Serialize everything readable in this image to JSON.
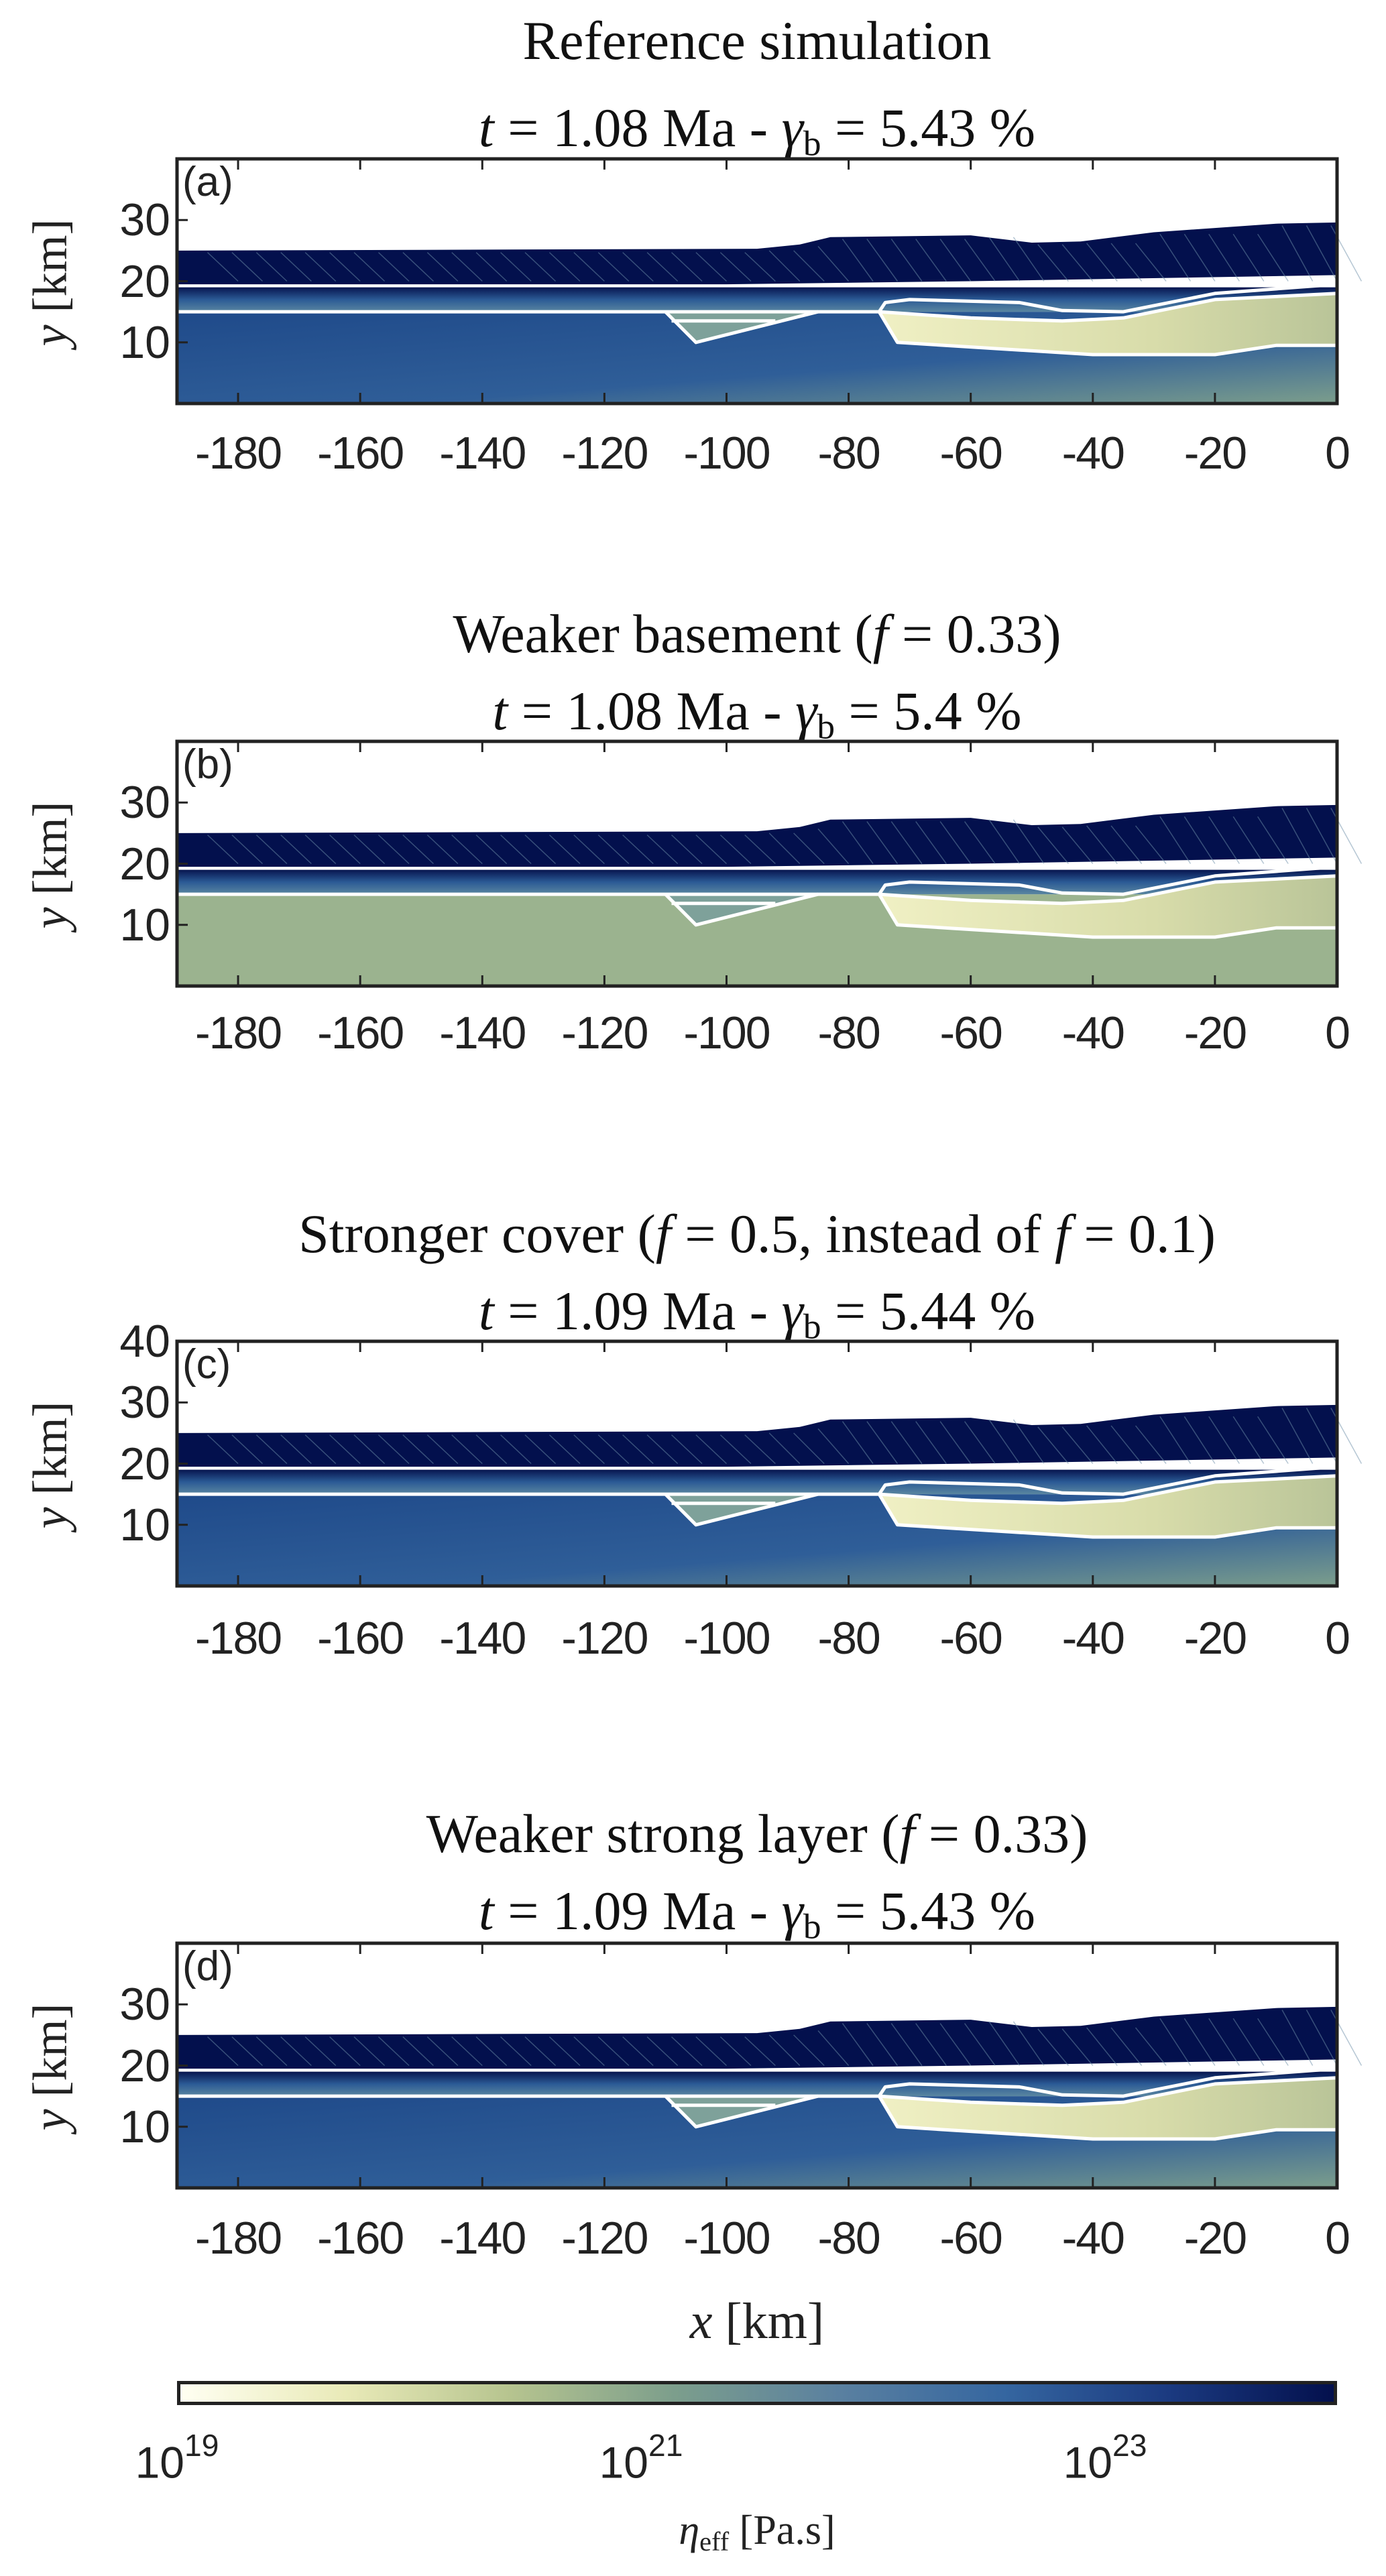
{
  "chart_data": {
    "type": "heatmap",
    "colormap": [
      "#fffff2",
      "#e9eab8",
      "#b6c48f",
      "#7c9e8c",
      "#5a80a0",
      "#3566a0",
      "#1b3a80",
      "#03104d"
    ],
    "panels": [
      {
        "label": "(a)",
        "title": "Reference simulation",
        "yticks": [
          10,
          20,
          30
        ],
        "title_line2": {
          "t_sym": "t",
          "mid": " = 1.08 Ma - ",
          "g_sym": "γ",
          "g_sub": "b",
          "end": " = 5.43 %"
        }
      },
      {
        "label": "(b)",
        "title": "Weaker basement (",
        "title_f": "f",
        "title_rest": " = 0.33)",
        "yticks": [
          10,
          20,
          30
        ],
        "title_line2": {
          "t_sym": "t",
          "mid": " = 1.08 Ma - ",
          "g_sym": "γ",
          "g_sub": "b",
          "end": " = 5.4 %"
        }
      },
      {
        "label": "(c)",
        "title": "Stronger cover (",
        "title_f": "f",
        "title_rest": " = 0.5, instead of ",
        "title_f2": "f",
        "title_rest2": " = 0.1)",
        "yticks": [
          10,
          20,
          30,
          40
        ],
        "title_line2": {
          "t_sym": "t",
          "mid": " = 1.09 Ma - ",
          "g_sym": "γ",
          "g_sub": "b",
          "end": " = 5.44 %"
        }
      },
      {
        "label": "(d)",
        "title": "Weaker strong layer (",
        "title_f": "f",
        "title_rest": " = 0.33)",
        "yticks": [
          10,
          20,
          30
        ],
        "title_line2": {
          "t_sym": "t",
          "mid": " = 1.09 Ma - ",
          "g_sym": "γ",
          "g_sub": "b",
          "end": " = 5.43 %"
        }
      }
    ],
    "xlim": [
      -190,
      0
    ],
    "ylim": [
      0,
      40
    ],
    "xticks": [
      -180,
      -160,
      -140,
      -120,
      -100,
      -80,
      -60,
      -40,
      -20,
      0
    ],
    "xlabel": {
      "sym": "x",
      "unit": " [km]"
    },
    "ylabel": {
      "sym": "y",
      "unit": " [km]"
    },
    "colorbar": {
      "scale": "log",
      "range": [
        1e+19,
        1e+24
      ],
      "ticks": [
        {
          "base": "10",
          "exp": "19",
          "value": 19
        },
        {
          "base": "10",
          "exp": "21",
          "value": 21
        },
        {
          "base": "10",
          "exp": "23",
          "value": 23
        }
      ],
      "label": {
        "sym": "η",
        "sub": "eff",
        "unit": " [Pa.s]"
      },
      "orientation": "horizontal",
      "placement": "bottom"
    }
  }
}
